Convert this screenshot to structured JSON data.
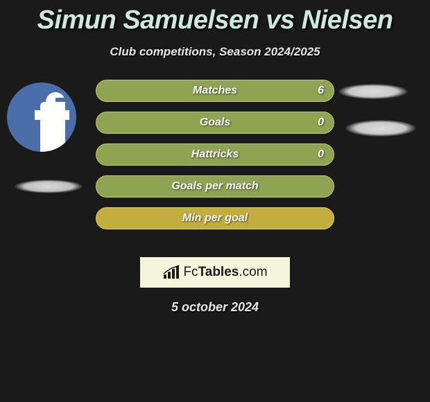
{
  "title": "Simun Samuelsen vs Nielsen",
  "subtitle": "Club competitions, Season 2024/2025",
  "stats": [
    {
      "label": "Matches",
      "value": "6",
      "bg": "#8fa352",
      "border": "#c0d070"
    },
    {
      "label": "Goals",
      "value": "0",
      "bg": "#8fa352",
      "border": "#c0d070"
    },
    {
      "label": "Hattricks",
      "value": "0",
      "bg": "#8fa352",
      "border": "#c0d070"
    },
    {
      "label": "Goals per match",
      "value": "",
      "bg": "#8fa352",
      "border": "#c0d070"
    },
    {
      "label": "Min per goal",
      "value": "",
      "bg": "#c2ad3f",
      "border": "#e0cc60"
    }
  ],
  "logo": {
    "fc": "Fc",
    "tables": "Tables",
    "suffix": ".com"
  },
  "date": "5 october 2024",
  "colors": {
    "background": "#1a1a1a",
    "title": "#cfe8e0",
    "text": "#e8e8e8",
    "logo_bg": "#f5f5dc",
    "avatar_bg": "#4a6ea9"
  }
}
